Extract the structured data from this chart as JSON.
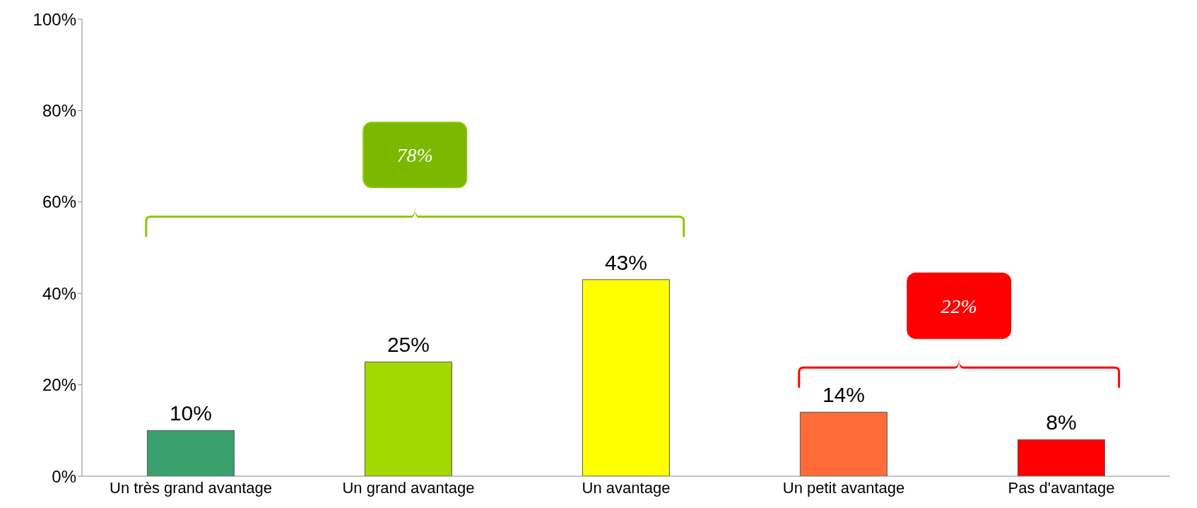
{
  "chart_data": {
    "type": "bar",
    "categories": [
      "Un très grand avantage",
      "Un grand avantage",
      "Un avantage",
      "Un petit avantage",
      "Pas d'avantage"
    ],
    "values": [
      10,
      25,
      43,
      14,
      8
    ],
    "colors": [
      "#3aa06e",
      "#a3d800",
      "#ffff00",
      "#ff6c3a",
      "#ff0000"
    ],
    "value_labels": [
      "10%",
      "25%",
      "43%",
      "14%",
      "8%"
    ],
    "ylim": [
      0,
      100
    ],
    "yticks": [
      {
        "value": 0,
        "label": "0%"
      },
      {
        "value": 20,
        "label": "20%"
      },
      {
        "value": 40,
        "label": "40%"
      },
      {
        "value": 60,
        "label": "60%"
      },
      {
        "value": 80,
        "label": "80%"
      },
      {
        "value": 100,
        "label": "100%"
      }
    ],
    "annotations": [
      "78%",
      "22%"
    ]
  }
}
